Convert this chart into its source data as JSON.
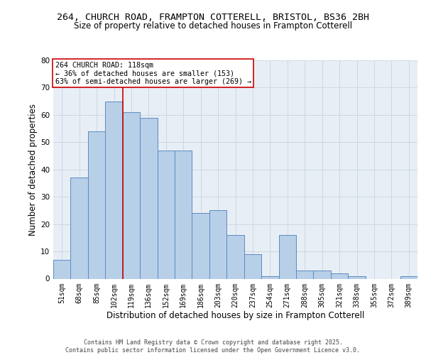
{
  "title1": "264, CHURCH ROAD, FRAMPTON COTTERELL, BRISTOL, BS36 2BH",
  "title2": "Size of property relative to detached houses in Frampton Cotterell",
  "xlabel": "Distribution of detached houses by size in Frampton Cotterell",
  "ylabel": "Number of detached properties",
  "categories": [
    "51sqm",
    "68sqm",
    "85sqm",
    "102sqm",
    "119sqm",
    "136sqm",
    "152sqm",
    "169sqm",
    "186sqm",
    "203sqm",
    "220sqm",
    "237sqm",
    "254sqm",
    "271sqm",
    "288sqm",
    "305sqm",
    "321sqm",
    "338sqm",
    "355sqm",
    "372sqm",
    "389sqm"
  ],
  "values": [
    7,
    37,
    54,
    65,
    61,
    59,
    47,
    47,
    24,
    25,
    16,
    9,
    1,
    16,
    3,
    3,
    2,
    1,
    0,
    0,
    1
  ],
  "bar_color": "#b8cfe8",
  "bar_edge_color": "#5a8cc0",
  "grid_color": "#c8d4e0",
  "background_color": "#e8eef5",
  "vline_color": "#cc0000",
  "annotation_line1": "264 CHURCH ROAD: 118sqm",
  "annotation_line2": "← 36% of detached houses are smaller (153)",
  "annotation_line3": "63% of semi-detached houses are larger (269) →",
  "annotation_box_facecolor": "#ffffff",
  "annotation_box_edgecolor": "#cc0000",
  "ylim_max": 80,
  "yticks": [
    0,
    10,
    20,
    30,
    40,
    50,
    60,
    70,
    80
  ],
  "footer": "Contains HM Land Registry data © Crown copyright and database right 2025.\nContains public sector information licensed under the Open Government Licence v3.0."
}
